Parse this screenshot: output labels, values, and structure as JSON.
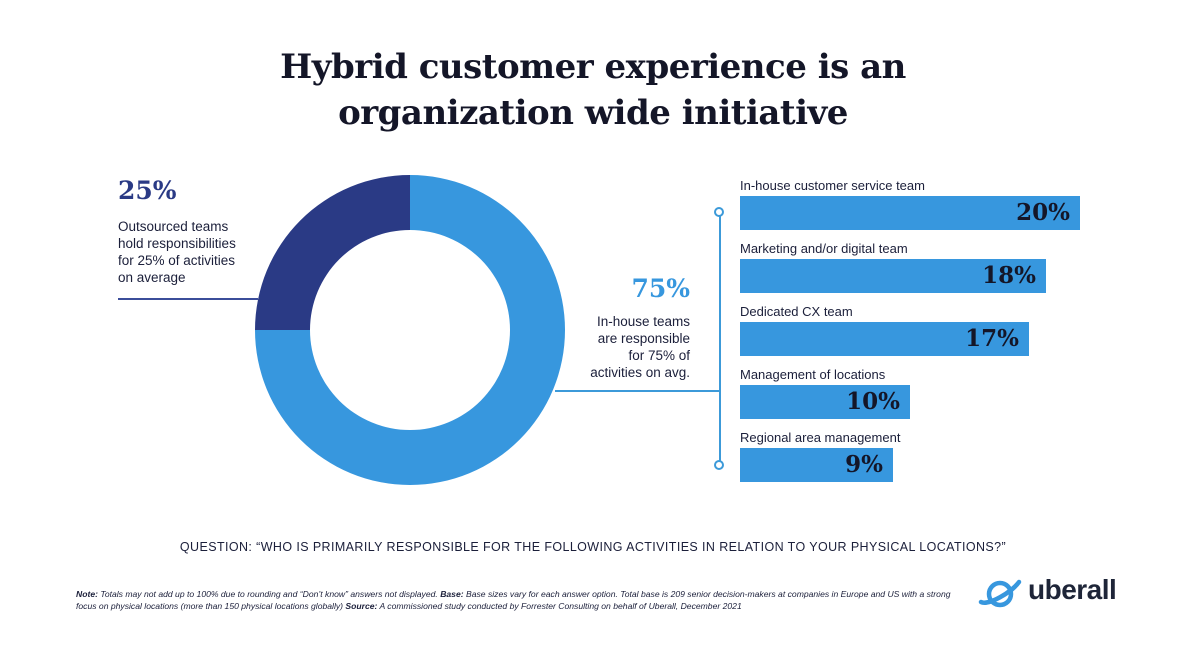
{
  "title_lines": [
    "Hybrid customer experience is an",
    "organization wide initiative"
  ],
  "colors": {
    "dark": "#2a3a85",
    "light": "#3797de",
    "text": "#141628"
  },
  "chart_data": [
    {
      "type": "pie",
      "categories": [
        "Outsourced teams",
        "In-house teams"
      ],
      "values": [
        25,
        75
      ],
      "colors": [
        "#2a3a85",
        "#3797de"
      ]
    },
    {
      "type": "bar",
      "orientation": "horizontal",
      "categories": [
        "In-house customer service team",
        "Marketing and/or digital team",
        "Dedicated CX team",
        "Management of locations",
        "Regional area management"
      ],
      "values": [
        20,
        18,
        17,
        10,
        9
      ],
      "value_labels": [
        "20%",
        "18%",
        "17%",
        "10%",
        "9%"
      ]
    }
  ],
  "callout_outsourced": {
    "pct": "25%",
    "lines": [
      "Outsourced teams",
      "hold responsibilities",
      "for 25% of activities",
      "on average"
    ]
  },
  "callout_inhouse": {
    "pct": "75%",
    "lines": [
      "In-house teams",
      "are responsible",
      "for 75% of",
      "activities on avg."
    ]
  },
  "question": "QUESTION: “WHO IS PRIMARILY RESPONSIBLE FOR THE FOLLOWING ACTIVITIES IN RELATION TO YOUR PHYSICAL LOCATIONS?”",
  "footnote": {
    "note_label": "Note:",
    "note_text": " Totals may not add up to 100% due to rounding and “Don’t know” answers not displayed. ",
    "base_label": "Base:",
    "base_text": " Base sizes vary for each answer option. Total base is 209 senior decision-makers at companies in Europe and US with a strong focus on physical locations (more than 150 physical locations globally) ",
    "source_label": "Source:",
    "source_text": " A commissioned study conducted by Forrester Consulting on behalf of Uberall, December 2021"
  },
  "logo": {
    "text": "uberall",
    "icon": "planet-icon"
  }
}
